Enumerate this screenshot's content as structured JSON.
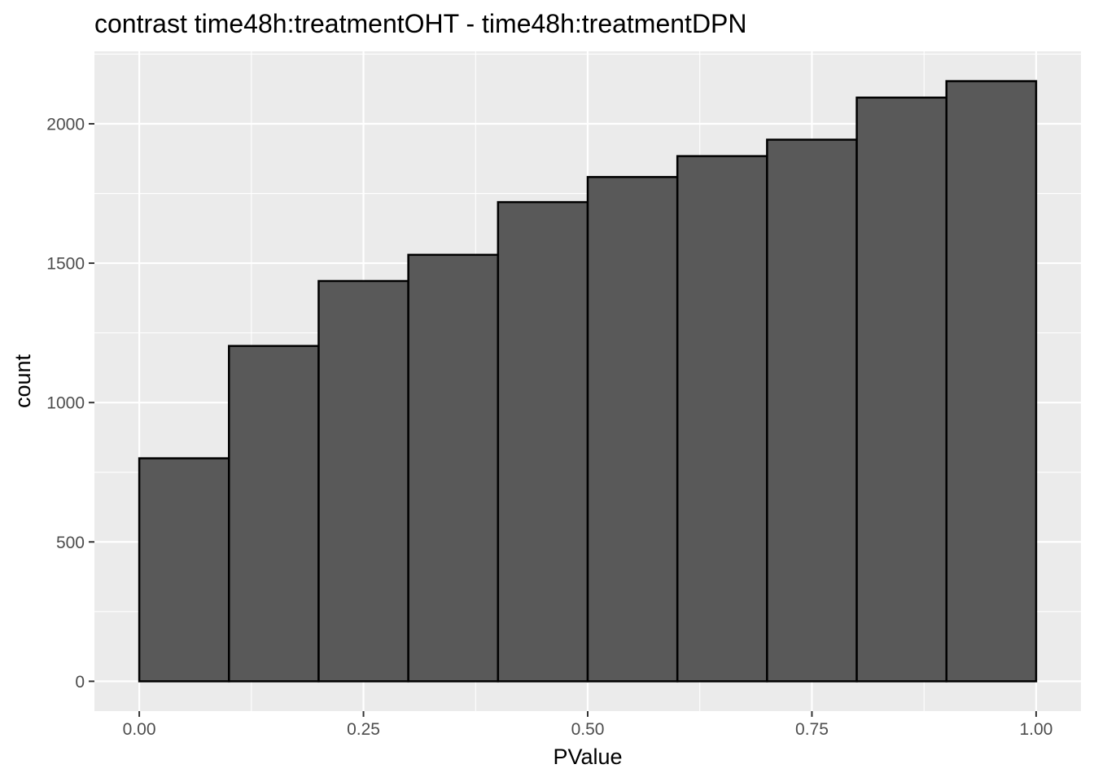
{
  "chart_data": {
    "type": "bar",
    "title": "contrast time48h:treatmentOHT - time48h:treatmentDPN",
    "xlabel": "PValue",
    "ylabel": "count",
    "bins": [
      {
        "x0": 0.0,
        "x1": 0.1,
        "count": 800
      },
      {
        "x0": 0.1,
        "x1": 0.2,
        "count": 1203
      },
      {
        "x0": 0.2,
        "x1": 0.3,
        "count": 1436
      },
      {
        "x0": 0.3,
        "x1": 0.4,
        "count": 1530
      },
      {
        "x0": 0.4,
        "x1": 0.5,
        "count": 1719
      },
      {
        "x0": 0.5,
        "x1": 0.6,
        "count": 1809
      },
      {
        "x0": 0.6,
        "x1": 0.7,
        "count": 1884
      },
      {
        "x0": 0.7,
        "x1": 0.8,
        "count": 1943
      },
      {
        "x0": 0.8,
        "x1": 0.9,
        "count": 2094
      },
      {
        "x0": 0.9,
        "x1": 1.0,
        "count": 2153
      }
    ],
    "xlim": [
      -0.05,
      1.05
    ],
    "ylim": [
      -107,
      2260
    ],
    "xticks": [
      0.0,
      0.25,
      0.5,
      0.75,
      1.0
    ],
    "xtick_labels": [
      "0.00",
      "0.25",
      "0.50",
      "0.75",
      "1.00"
    ],
    "yticks": [
      0,
      500,
      1000,
      1500,
      2000
    ],
    "ytick_labels": [
      "0",
      "500",
      "1000",
      "1500",
      "2000"
    ],
    "grid": true,
    "legend": "none",
    "colors": {
      "panel_background": "#ebebeb",
      "grid": "#ffffff",
      "bar_fill": "#595959",
      "bar_outline": "#000000"
    }
  }
}
